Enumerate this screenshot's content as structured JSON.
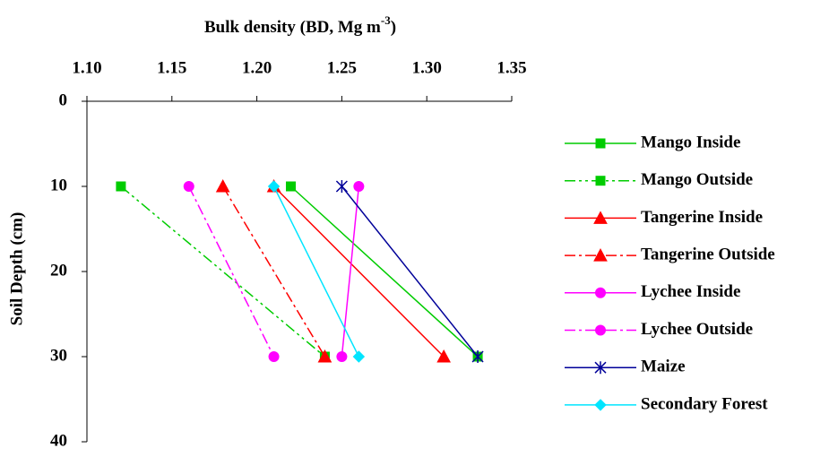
{
  "chart_data": {
    "type": "line",
    "x_label": [
      "Bulk density (BD, Mg m",
      "-3",
      ")"
    ],
    "y_label": "Soil Depth (cm)",
    "xlim": [
      1.1,
      1.35
    ],
    "xticks": [
      {
        "value": 1.1,
        "label": "1.10"
      },
      1.15,
      {
        "value": 1.2,
        "label": "1.20"
      },
      1.25,
      {
        "value": 1.3,
        "label": "1.30"
      },
      1.35
    ],
    "ylim": [
      0,
      40
    ],
    "yticks": [
      0,
      10,
      20,
      30,
      40
    ],
    "y_inverted": true,
    "x_axis_position": "top",
    "grid": false,
    "legend": "right",
    "series": [
      {
        "name": "Mango Inside",
        "color": "#00cc00",
        "style": "solid",
        "marker": "square",
        "x": [
          1.22,
          1.33
        ],
        "y": [
          10,
          30
        ]
      },
      {
        "name": "Mango Outside",
        "color": "#00cc00",
        "style": "dash-dot-dot",
        "marker": "square",
        "x": [
          1.12,
          1.24
        ],
        "y": [
          10,
          30
        ]
      },
      {
        "name": "Tangerine Inside",
        "color": "#ff0000",
        "style": "solid",
        "marker": "triangle",
        "x": [
          1.21,
          1.31
        ],
        "y": [
          10,
          30
        ]
      },
      {
        "name": "Tangerine Outside",
        "color": "#ff0000",
        "style": "dash-dot",
        "marker": "triangle",
        "x": [
          1.18,
          1.24
        ],
        "y": [
          10,
          30
        ]
      },
      {
        "name": "Lychee Inside",
        "color": "#ff00ff",
        "style": "solid",
        "marker": "circle",
        "x": [
          1.26,
          1.25
        ],
        "y": [
          10,
          30
        ]
      },
      {
        "name": "Lychee Outside",
        "color": "#ff00ff",
        "style": "dash-dot",
        "marker": "circle",
        "x": [
          1.16,
          1.21
        ],
        "y": [
          10,
          30
        ]
      },
      {
        "name": "Maize",
        "color": "#000099",
        "style": "solid",
        "marker": "star",
        "x": [
          1.25,
          1.33
        ],
        "y": [
          10,
          30
        ]
      },
      {
        "name": "Secondary Forest",
        "color": "#00e5ff",
        "style": "solid",
        "marker": "diamond",
        "x": [
          1.21,
          1.26
        ],
        "y": [
          10,
          30
        ]
      }
    ]
  }
}
